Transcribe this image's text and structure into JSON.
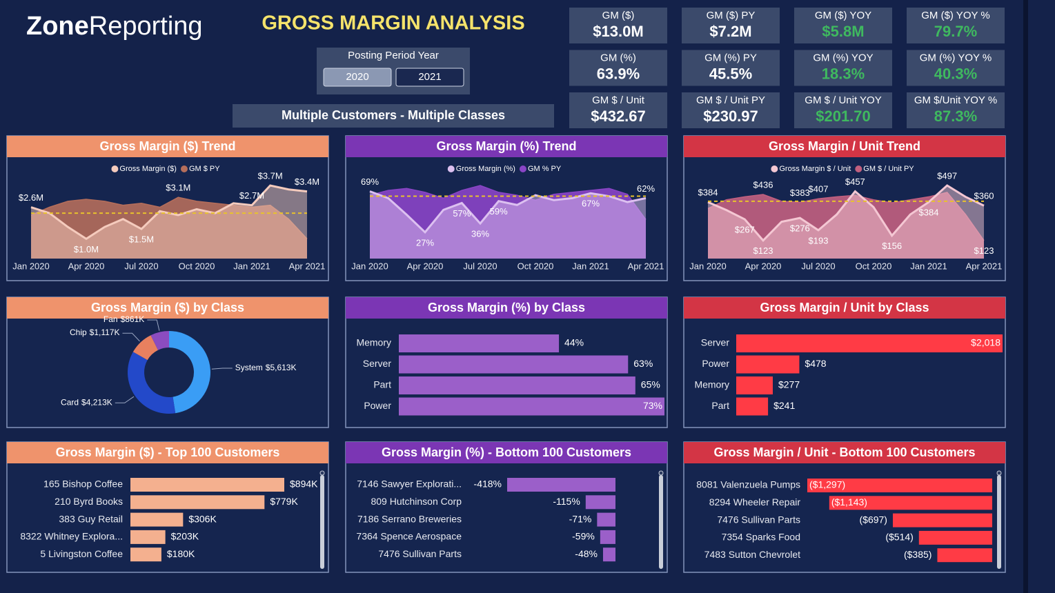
{
  "header": {
    "logo_bold": "Zone",
    "logo_light": "Reporting",
    "title": "GROSS MARGIN ANALYSIS"
  },
  "slicer": {
    "title": "Posting Period Year",
    "options": [
      "2020",
      "2021"
    ]
  },
  "filter": "Multiple Customers - Multiple Classes",
  "kpis": [
    {
      "label": "GM ($)",
      "value": "$13.0M",
      "value_color": "#ffffff"
    },
    {
      "label": "GM ($) PY",
      "value": "$7.2M",
      "value_color": "#ffffff"
    },
    {
      "label": "GM ($) YOY",
      "value": "$5.8M",
      "value_color": "#3fb95f"
    },
    {
      "label": "GM ($) YOY %",
      "value": "79.7%",
      "value_color": "#3fb95f"
    },
    {
      "label": "GM (%)",
      "value": "63.9%",
      "value_color": "#ffffff"
    },
    {
      "label": "GM (%) PY",
      "value": "45.5%",
      "value_color": "#ffffff"
    },
    {
      "label": "GM (%) YOY",
      "value": "18.3%",
      "value_color": "#3fb95f"
    },
    {
      "label": "GM (%) YOY %",
      "value": "40.3%",
      "value_color": "#3fb95f"
    },
    {
      "label": "GM $ / Unit",
      "value": "$432.67",
      "value_color": "#ffffff"
    },
    {
      "label": "GM $ / Unit PY",
      "value": "$230.97",
      "value_color": "#ffffff"
    },
    {
      "label": "GM $ / Unit YOY",
      "value": "$201.70",
      "value_color": "#3fb95f"
    },
    {
      "label": "GM $/Unit YOY %",
      "value": "87.3%",
      "value_color": "#3fb95f"
    }
  ],
  "chart_data": [
    {
      "type": "area",
      "title": "Gross Margin ($) Trend",
      "title_color": "#ef936c",
      "categories": [
        "Jan 2020",
        null,
        null,
        "Apr 2020",
        null,
        null,
        "Jul 2020",
        null,
        null,
        "Oct 2020",
        null,
        null,
        "Jan 2021",
        null,
        null,
        "Apr 2021"
      ],
      "series": [
        {
          "name": "Gross Margin ($)",
          "color": "#f5cbbd",
          "values": [
            2.6,
            2.3,
            1.6,
            1.0,
            1.6,
            2.0,
            1.5,
            2.4,
            2.2,
            2.5,
            2.3,
            2.8,
            2.7,
            3.7,
            3.5,
            3.4
          ],
          "value_labels": [
            "$2.6M",
            null,
            null,
            "$1.0M",
            null,
            null,
            "$1.5M",
            null,
            null,
            null,
            null,
            null,
            "$2.7M",
            "$3.7M",
            null,
            "$3.4M"
          ]
        },
        {
          "name": "GM $ PY",
          "color": "#b56e5b",
          "values": [
            2.2,
            2.6,
            2.9,
            3.0,
            2.9,
            2.7,
            2.8,
            2.6,
            3.1,
            2.9,
            2.8,
            2.7,
            2.6,
            2.7,
            2.0,
            1.0
          ],
          "value_labels": [
            null,
            null,
            null,
            null,
            null,
            null,
            null,
            null,
            "$3.1M",
            null,
            null,
            null,
            null,
            null,
            null,
            null
          ]
        }
      ],
      "average": 2.3,
      "average_color": "#e8c22c"
    },
    {
      "type": "area",
      "title": "Gross Margin (%) Trend",
      "title_color": "#7b36b4",
      "categories": [
        "Jan 2020",
        null,
        null,
        "Apr 2020",
        null,
        null,
        "Jul 2020",
        null,
        null,
        "Oct 2020",
        null,
        null,
        "Jan 2021",
        null,
        null,
        "Apr 2021"
      ],
      "series": [
        {
          "name": "Gross Margin (%)",
          "color": "#dcc0f0",
          "values": [
            69,
            62,
            45,
            27,
            50,
            57,
            36,
            59,
            55,
            65,
            60,
            62,
            67,
            64,
            58,
            62
          ],
          "value_labels": [
            "69%",
            null,
            null,
            "27%",
            null,
            "57%",
            "36%",
            "59%",
            null,
            null,
            null,
            null,
            "67%",
            null,
            null,
            "62%"
          ]
        },
        {
          "name": "GM % PY",
          "color": "#8a45c6",
          "values": [
            65,
            70,
            72,
            68,
            62,
            70,
            75,
            68,
            65,
            60,
            66,
            68,
            70,
            72,
            66,
            40
          ]
        }
      ],
      "average": 64,
      "average_color": "#e8c22c"
    },
    {
      "type": "area",
      "title": "Gross Margin / Unit Trend",
      "title_color": "#d33545",
      "categories": [
        "Jan 2020",
        null,
        null,
        "Apr 2020",
        null,
        null,
        "Jul 2020",
        null,
        null,
        "Oct 2020",
        null,
        null,
        "Jan 2021",
        null,
        null,
        "Apr 2021"
      ],
      "series": [
        {
          "name": "Gross Margin $ / Unit",
          "color": "#f4c7d3",
          "values": [
            384,
            330,
            267,
            123,
            250,
            276,
            193,
            300,
            457,
            350,
            156,
            300,
            384,
            497,
            420,
            360
          ],
          "value_labels": [
            "$384",
            null,
            "$267",
            "$123",
            null,
            "$276",
            "$193",
            null,
            "$457",
            null,
            "$156",
            null,
            "$384",
            "$497",
            null,
            "$360"
          ]
        },
        {
          "name": "GM $ / Unit PY",
          "color": "#c2607f",
          "values": [
            340,
            400,
            420,
            436,
            390,
            383,
            407,
            420,
            430,
            400,
            380,
            400,
            420,
            450,
            300,
            123
          ],
          "value_labels": [
            null,
            null,
            null,
            "$436",
            null,
            "$383",
            "$407",
            null,
            null,
            null,
            null,
            null,
            null,
            null,
            null,
            "$123"
          ]
        }
      ],
      "average": 390,
      "average_color": "#e8c22c"
    },
    {
      "type": "donut",
      "title": "Gross Margin ($) by Class",
      "title_color": "#ef936c",
      "categories": [
        "System",
        "Card",
        "Chip",
        "Fan"
      ],
      "values": [
        5613,
        4213,
        1117,
        861
      ],
      "value_labels": [
        "$5,613K",
        "$4,213K",
        "$1,117K",
        "$861K"
      ],
      "colors": [
        "#3a9df5",
        "#2349c9",
        "#e8805f",
        "#8b4cc0"
      ]
    },
    {
      "type": "hbar",
      "title": "Gross Margin (%) by Class",
      "title_color": "#7b36b4",
      "color": "#9b5fc9",
      "categories": [
        "Memory",
        "Server",
        "Part",
        "Power"
      ],
      "values": [
        44,
        63,
        65,
        73
      ],
      "value_labels": [
        "44%",
        "63%",
        "65%",
        "73%"
      ]
    },
    {
      "type": "hbar",
      "title": "Gross Margin / Unit by Class",
      "title_color": "#d33545",
      "color": "#ff3b45",
      "categories": [
        "Server",
        "Power",
        "Memory",
        "Part"
      ],
      "values": [
        2018,
        478,
        277,
        241
      ],
      "value_labels": [
        "$2,018",
        "$478",
        "$277",
        "$241"
      ]
    },
    {
      "type": "hbar",
      "title": "Gross Margin ($) - Top 100 Customers",
      "title_color": "#ef936c",
      "color": "#f4b08f",
      "categories": [
        "165 Bishop Coffee",
        "210 Byrd Books",
        "383 Guy Retail",
        "8322 Whitney Explora...",
        "5 Livingston Coffee"
      ],
      "values": [
        894,
        779,
        306,
        203,
        180
      ],
      "value_labels": [
        "$894K",
        "$779K",
        "$306K",
        "$203K",
        "$180K"
      ]
    },
    {
      "type": "hbar",
      "title": "Gross Margin (%) - Bottom 100 Customers",
      "title_color": "#7b36b4",
      "color": "#9b5fc9",
      "categories": [
        "7146 Sawyer Explorati...",
        "809 Hutchinson Corp",
        "7186 Serrano Breweries",
        "7364 Spence Aerospace",
        "7476 Sullivan Parts"
      ],
      "values": [
        -418,
        -115,
        -71,
        -59,
        -48
      ],
      "value_labels": [
        "-418%",
        "-115%",
        "-71%",
        "-59%",
        "-48%"
      ]
    },
    {
      "type": "hbar",
      "title": "Gross Margin / Unit - Bottom 100 Customers",
      "title_color": "#d33545",
      "color": "#ff3b45",
      "categories": [
        "8081 Valenzuela Pumps",
        "8294 Wheeler Repair",
        "7476 Sullivan Parts",
        "7354 Sparks Food",
        "7483 Sutton Chevrolet"
      ],
      "values": [
        -1297,
        -1143,
        -697,
        -514,
        -385
      ],
      "value_labels": [
        "($1,297)",
        "($1,143)",
        "($697)",
        "($514)",
        "($385)"
      ]
    }
  ]
}
